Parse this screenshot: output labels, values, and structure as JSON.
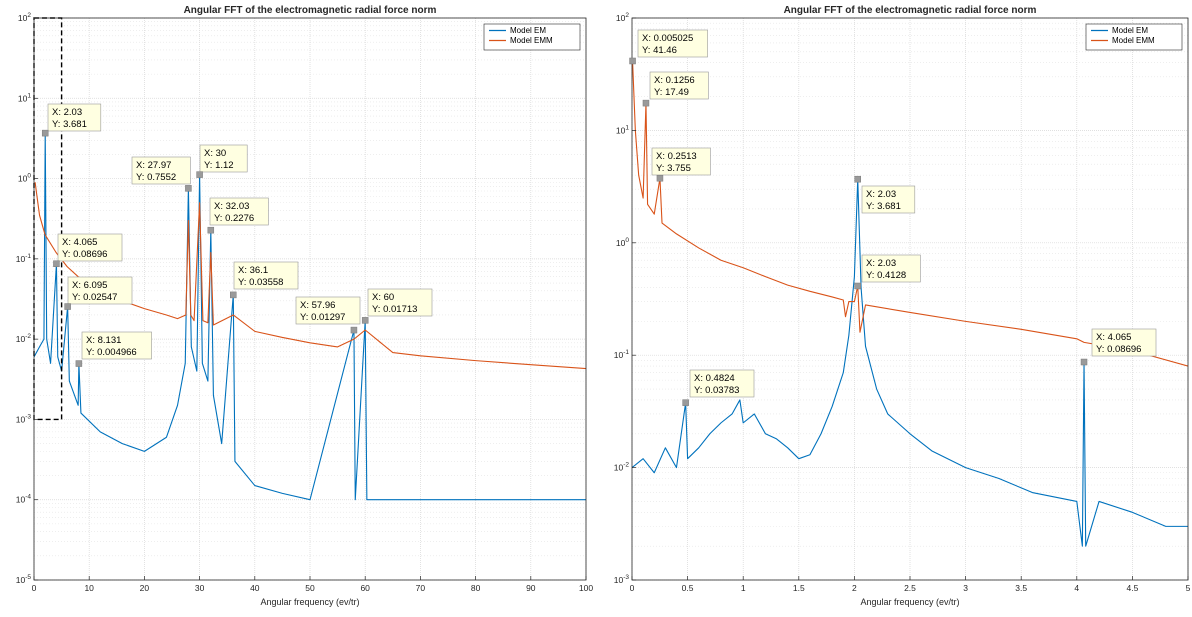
{
  "chart_data": [
    {
      "type": "line",
      "title": "Angular FFT of the electromagnetic radial force norm",
      "xlabel": "Angular frequency (ev/tr)",
      "ylabel": "",
      "xlim": [
        0,
        100
      ],
      "ylim": [
        1e-05,
        100
      ],
      "yscale": "log",
      "grid": true,
      "legend": "top-right",
      "x_ticks": [
        "0",
        "10",
        "20",
        "30",
        "40",
        "50",
        "60",
        "70",
        "80",
        "90",
        "100"
      ],
      "y_ticks": [
        "10^-5",
        "10^-4",
        "10^-3",
        "10^-2",
        "10^-1",
        "10^0",
        "10^1",
        "10^2"
      ],
      "series": [
        {
          "name": "Model EM",
          "color": "#0072BD",
          "points": [
            [
              0,
              0.006
            ],
            [
              1,
              0.008
            ],
            [
              1.8,
              0.01
            ],
            [
              2.03,
              3.681
            ],
            [
              2.3,
              0.01
            ],
            [
              3,
              0.005
            ],
            [
              4.065,
              0.08696
            ],
            [
              4.3,
              0.006
            ],
            [
              5,
              0.004
            ],
            [
              6.095,
              0.02547
            ],
            [
              6.4,
              0.003
            ],
            [
              8,
              0.0015
            ],
            [
              8.131,
              0.004966
            ],
            [
              8.5,
              0.0012
            ],
            [
              12,
              0.0007
            ],
            [
              16,
              0.0005
            ],
            [
              20,
              0.0004
            ],
            [
              24,
              0.0006
            ],
            [
              26,
              0.0015
            ],
            [
              27.4,
              0.005
            ],
            [
              27.97,
              0.7552
            ],
            [
              28.5,
              0.008
            ],
            [
              29.5,
              0.004
            ],
            [
              30,
              1.12
            ],
            [
              30.5,
              0.005
            ],
            [
              31.5,
              0.003
            ],
            [
              32.03,
              0.2276
            ],
            [
              32.5,
              0.002
            ],
            [
              34,
              0.0005
            ],
            [
              36.1,
              0.03558
            ],
            [
              36.4,
              0.0003
            ],
            [
              40,
              0.00015
            ],
            [
              45,
              0.00012
            ],
            [
              50,
              0.0001
            ],
            [
              57.96,
              0.01297
            ],
            [
              58.2,
              0.0001
            ],
            [
              60,
              0.01713
            ],
            [
              60.3,
              0.0001
            ],
            [
              70,
              0.0001
            ],
            [
              80,
              0.0001
            ],
            [
              90,
              0.0001
            ],
            [
              100,
              0.0001
            ]
          ]
        },
        {
          "name": "Model EMM",
          "color": "#D95319",
          "points": [
            [
              0.2,
              0.9
            ],
            [
              1,
              0.35
            ],
            [
              2,
              0.2
            ],
            [
              4,
              0.12
            ],
            [
              6,
              0.08
            ],
            [
              8,
              0.06
            ],
            [
              12,
              0.04
            ],
            [
              16,
              0.03
            ],
            [
              20,
              0.024
            ],
            [
              24,
              0.02
            ],
            [
              26,
              0.018
            ],
            [
              27.5,
              0.02
            ],
            [
              27.97,
              0.3
            ],
            [
              28.4,
              0.02
            ],
            [
              29,
              0.017
            ],
            [
              30,
              0.5
            ],
            [
              30.6,
              0.017
            ],
            [
              31.5,
              0.016
            ],
            [
              32.03,
              0.12
            ],
            [
              32.5,
              0.015
            ],
            [
              36.1,
              0.02
            ],
            [
              40,
              0.0125
            ],
            [
              45,
              0.0105
            ],
            [
              50,
              0.009
            ],
            [
              55,
              0.008
            ],
            [
              57.96,
              0.01
            ],
            [
              60,
              0.013
            ],
            [
              65,
              0.0068
            ],
            [
              70,
              0.0062
            ],
            [
              80,
              0.0054
            ],
            [
              90,
              0.0048
            ],
            [
              100,
              0.0043
            ]
          ]
        }
      ],
      "datatips": [
        {
          "x": 2.03,
          "y": 3.681,
          "label_x": "X: 2.03",
          "label_y": "Y: 3.681"
        },
        {
          "x": 4.065,
          "y": 0.08696,
          "label_x": "X: 4.065",
          "label_y": "Y: 0.08696"
        },
        {
          "x": 6.095,
          "y": 0.02547,
          "label_x": "X: 6.095",
          "label_y": "Y: 0.02547"
        },
        {
          "x": 8.131,
          "y": 0.004966,
          "label_x": "X: 8.131",
          "label_y": "Y: 0.004966"
        },
        {
          "x": 27.97,
          "y": 0.7552,
          "label_x": "X: 27.97",
          "label_y": "Y: 0.7552"
        },
        {
          "x": 30,
          "y": 1.12,
          "label_x": "X: 30",
          "label_y": "Y: 1.12"
        },
        {
          "x": 32.03,
          "y": 0.2276,
          "label_x": "X: 32.03",
          "label_y": "Y: 0.2276"
        },
        {
          "x": 36.1,
          "y": 0.03558,
          "label_x": "X: 36.1",
          "label_y": "Y: 0.03558"
        },
        {
          "x": 57.96,
          "y": 0.01297,
          "label_x": "X: 57.96",
          "label_y": "Y: 0.01297"
        },
        {
          "x": 60,
          "y": 0.01713,
          "label_x": "X: 60",
          "label_y": "Y: 0.01713"
        }
      ],
      "zoom_box": {
        "x": [
          0,
          5
        ],
        "y": [
          0.001,
          100
        ]
      }
    },
    {
      "type": "line",
      "title": "Angular FFT of the electromagnetic radial force norm",
      "xlabel": "Angular frequency (ev/tr)",
      "ylabel": "",
      "xlim": [
        0,
        5
      ],
      "ylim": [
        0.001,
        100
      ],
      "yscale": "log",
      "grid": true,
      "legend": "top-right",
      "x_ticks": [
        "0",
        "0.5",
        "1",
        "1.5",
        "2",
        "2.5",
        "3",
        "3.5",
        "4",
        "4.5",
        "5"
      ],
      "y_ticks": [
        "10^-3",
        "10^-2",
        "10^-1",
        "10^0",
        "10^1",
        "10^2"
      ],
      "series": [
        {
          "name": "Model EM",
          "color": "#0072BD",
          "points": [
            [
              0,
              0.01
            ],
            [
              0.1,
              0.012
            ],
            [
              0.2,
              0.009
            ],
            [
              0.3,
              0.015
            ],
            [
              0.4,
              0.01
            ],
            [
              0.4824,
              0.03783
            ],
            [
              0.5,
              0.012
            ],
            [
              0.6,
              0.015
            ],
            [
              0.7,
              0.02
            ],
            [
              0.8,
              0.025
            ],
            [
              0.9,
              0.03
            ],
            [
              0.97,
              0.04
            ],
            [
              1.0,
              0.025
            ],
            [
              1.1,
              0.03
            ],
            [
              1.2,
              0.02
            ],
            [
              1.3,
              0.018
            ],
            [
              1.4,
              0.015
            ],
            [
              1.5,
              0.012
            ],
            [
              1.6,
              0.013
            ],
            [
              1.7,
              0.02
            ],
            [
              1.8,
              0.035
            ],
            [
              1.9,
              0.07
            ],
            [
              1.95,
              0.15
            ],
            [
              2.0,
              0.5
            ],
            [
              2.03,
              3.681
            ],
            [
              2.06,
              0.4
            ],
            [
              2.1,
              0.12
            ],
            [
              2.2,
              0.05
            ],
            [
              2.3,
              0.03
            ],
            [
              2.5,
              0.02
            ],
            [
              2.7,
              0.014
            ],
            [
              3.0,
              0.01
            ],
            [
              3.3,
              0.008
            ],
            [
              3.6,
              0.006
            ],
            [
              4.0,
              0.005
            ],
            [
              4.05,
              0.002
            ],
            [
              4.065,
              0.08696
            ],
            [
              4.08,
              0.002
            ],
            [
              4.2,
              0.005
            ],
            [
              4.5,
              0.004
            ],
            [
              4.8,
              0.003
            ],
            [
              5.0,
              0.003
            ]
          ]
        },
        {
          "name": "Model EMM",
          "color": "#D95319",
          "points": [
            [
              0.005025,
              41.46
            ],
            [
              0.03,
              10
            ],
            [
              0.06,
              4
            ],
            [
              0.1,
              2.5
            ],
            [
              0.1256,
              17.49
            ],
            [
              0.14,
              2.2
            ],
            [
              0.2,
              1.8
            ],
            [
              0.2513,
              3.755
            ],
            [
              0.27,
              1.5
            ],
            [
              0.4,
              1.2
            ],
            [
              0.6,
              0.9
            ],
            [
              0.8,
              0.7
            ],
            [
              1.0,
              0.6
            ],
            [
              1.2,
              0.5
            ],
            [
              1.4,
              0.42
            ],
            [
              1.6,
              0.37
            ],
            [
              1.8,
              0.33
            ],
            [
              1.9,
              0.31
            ],
            [
              1.92,
              0.22
            ],
            [
              1.95,
              0.3
            ],
            [
              2.0,
              0.3
            ],
            [
              2.03,
              0.4128
            ],
            [
              2.05,
              0.16
            ],
            [
              2.1,
              0.28
            ],
            [
              2.5,
              0.24
            ],
            [
              3.0,
              0.2
            ],
            [
              3.5,
              0.17
            ],
            [
              4.0,
              0.14
            ],
            [
              4.065,
              0.13
            ],
            [
              4.5,
              0.11
            ],
            [
              5.0,
              0.08
            ]
          ]
        }
      ],
      "datatips": [
        {
          "x": 0.005025,
          "y": 41.46,
          "label_x": "X: 0.005025",
          "label_y": "Y: 41.46"
        },
        {
          "x": 0.1256,
          "y": 17.49,
          "label_x": "X: 0.1256",
          "label_y": "Y: 17.49"
        },
        {
          "x": 0.2513,
          "y": 3.755,
          "label_x": "X: 0.2513",
          "label_y": "Y: 3.755"
        },
        {
          "x": 2.03,
          "y": 3.681,
          "label_x": "X: 2.03",
          "label_y": "Y: 3.681"
        },
        {
          "x": 2.03,
          "y": 0.4128,
          "label_x": "X: 2.03",
          "label_y": "Y: 0.4128"
        },
        {
          "x": 4.065,
          "y": 0.08696,
          "label_x": "X: 4.065",
          "label_y": "Y: 0.08696"
        },
        {
          "x": 0.4824,
          "y": 0.03783,
          "label_x": "X: 0.4824",
          "label_y": "Y: 0.03783"
        }
      ]
    }
  ]
}
